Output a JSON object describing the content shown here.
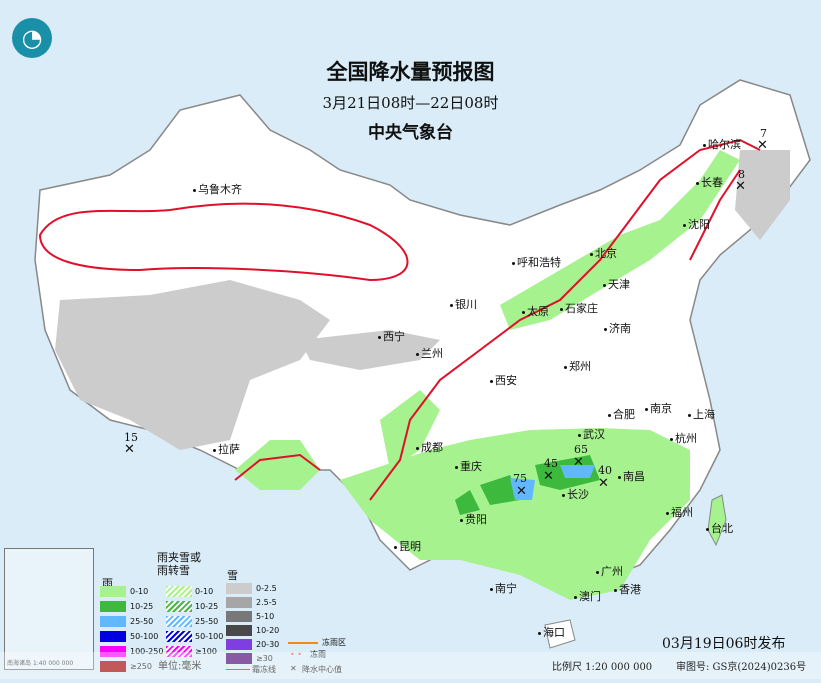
{
  "header": {
    "title": "全国降水量预报图",
    "period": "3月21日08时—22日08时",
    "issuer": "中央气象台"
  },
  "cities": [
    "乌鲁木齐",
    "哈尔滨",
    "长春",
    "沈阳",
    "北京",
    "天津",
    "呼和浩特",
    "石家庄",
    "太原",
    "银川",
    "济南",
    "西宁",
    "兰州",
    "郑州",
    "西安",
    "合肥",
    "南京",
    "上海",
    "杭州",
    "成都",
    "武汉",
    "拉萨",
    "重庆",
    "长沙",
    "南昌",
    "贵阳",
    "福州",
    "台北",
    "昆明",
    "南宁",
    "广州",
    "香港",
    "澳门",
    "海口"
  ],
  "precip_centers": [
    {
      "value": "7",
      "near": "哈尔滨"
    },
    {
      "value": "8",
      "near": "长春"
    },
    {
      "value": "15",
      "near": "西藏"
    },
    {
      "value": "75",
      "near": "贵州"
    },
    {
      "value": "45",
      "near": "湖南"
    },
    {
      "value": "65",
      "near": "湖南"
    },
    {
      "value": "40",
      "near": "南昌"
    }
  ],
  "legend": {
    "rain_title": "雨",
    "mixed_title": "雨夹雪或雨转雪",
    "snow_title": "雪",
    "rain": [
      {
        "label": "0-10",
        "color": "#a6f28f"
      },
      {
        "label": "10-25",
        "color": "#3dba3d"
      },
      {
        "label": "25-50",
        "color": "#61b8ff"
      },
      {
        "label": "50-100",
        "color": "#0000e1"
      },
      {
        "label": "100-250",
        "color": "#fa00fa"
      },
      {
        "label": "≥250",
        "color": "#800040"
      }
    ],
    "mixed": [
      {
        "label": "0-10",
        "color": "#a6f28f"
      },
      {
        "label": "10-25",
        "color": "#3dba3d"
      },
      {
        "label": "25-50",
        "color": "#61b8ff"
      },
      {
        "label": "50-100",
        "color": "#0000e1"
      },
      {
        "label": "≥100",
        "color": "#fa00fa"
      }
    ],
    "snow": [
      {
        "label": "0-2.5",
        "color": "#cccccc"
      },
      {
        "label": "2.5-5",
        "color": "#a6a6a6"
      },
      {
        "label": "5-10",
        "color": "#787878"
      },
      {
        "label": "10-20",
        "color": "#484848"
      },
      {
        "label": "20-30",
        "color": "#7e3ee0"
      },
      {
        "label": "≥30",
        "color": "#4c0073"
      }
    ],
    "freezing_rain_area": "冻雨区",
    "freezing_rain": "冻雨",
    "frost_line": "霜冻线",
    "center_value": "降水中心值",
    "unit": "单位:毫米"
  },
  "inset": {
    "title": "南海诸岛",
    "scale": "1:40 000 000"
  },
  "footer": {
    "publish_time": "03月19日06时发布",
    "scale": "比例尺 1:20 000 000",
    "review_no": "审图号: GS京(2024)0236号"
  }
}
